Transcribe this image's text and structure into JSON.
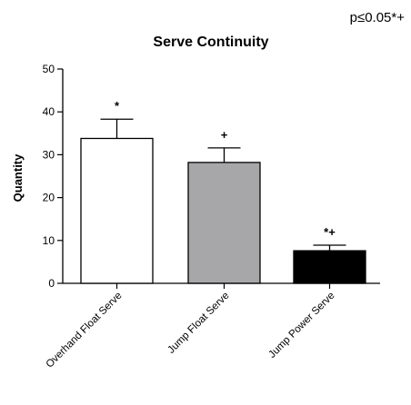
{
  "significance_note": "p≤0.05*+",
  "chart_data": {
    "type": "bar",
    "title": "Serve Continuity",
    "xlabel": "",
    "ylabel": "Quantity",
    "ylim": [
      0,
      50
    ],
    "yticks": [
      "0",
      "10",
      "20",
      "30",
      "40",
      "50"
    ],
    "grid": false,
    "categories": [
      "Overhand Float Serve",
      "Jump Float Serve",
      "Jump Power Serve"
    ],
    "values": [
      33.8,
      28.2,
      7.6
    ],
    "error_upper": [
      38.3,
      31.6,
      8.9
    ],
    "significance_marks": [
      "*",
      "+",
      "*+"
    ],
    "colors": {
      "bars": [
        "#ffffff",
        "#a7a7aa",
        "#000000"
      ],
      "outline": "#000000"
    }
  }
}
